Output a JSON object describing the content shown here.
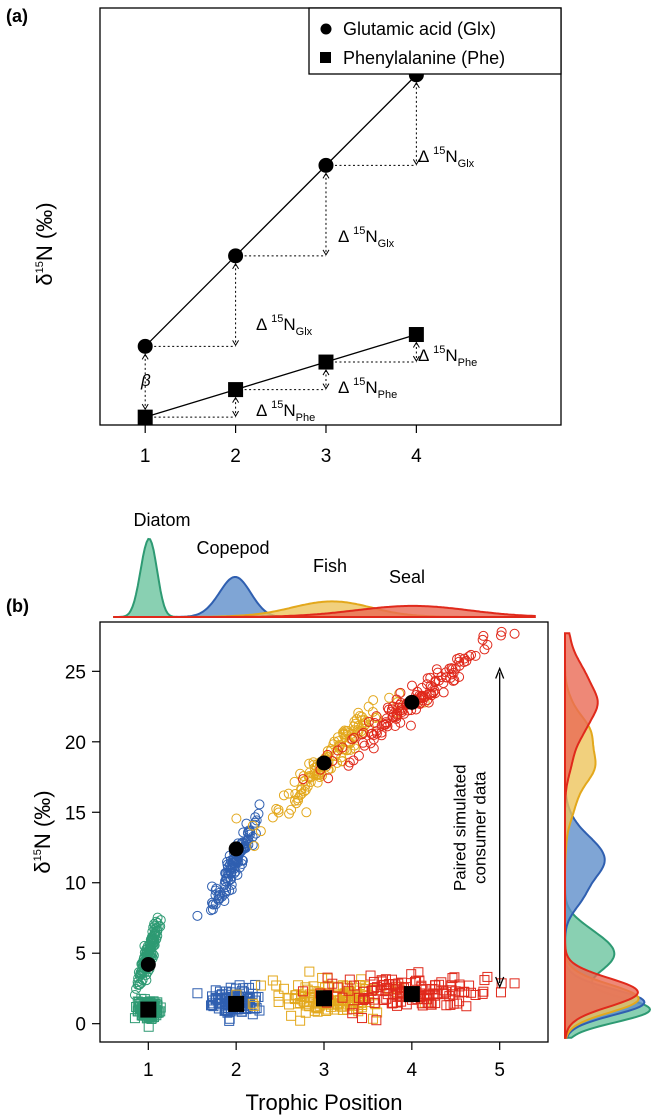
{
  "chart_data": [
    {
      "panel": "(a)",
      "type": "line",
      "ylabel": {
        "symbol": "δ",
        "sup": "15",
        "main": "N (‰)"
      },
      "x_ticks": [
        1,
        2,
        3,
        4
      ],
      "xlim": [
        0.5,
        5.6
      ],
      "ylim": [
        0,
        10.6
      ],
      "legend": {
        "position": "top-right",
        "entries": [
          {
            "marker": "circle",
            "label": "Glutamic acid (Glx)"
          },
          {
            "marker": "square",
            "label": "Phenylalanine (Phe)"
          }
        ]
      },
      "series": [
        {
          "name": "Glutamic acid (Glx)",
          "marker": "circle",
          "x": [
            1,
            2,
            3,
            4
          ],
          "y": [
            2.0,
            4.3,
            6.6,
            8.9
          ]
        },
        {
          "name": "Phenylalanine (Phe)",
          "marker": "square",
          "x": [
            1,
            2,
            3,
            4
          ],
          "y": [
            0.2,
            0.9,
            1.6,
            2.3
          ]
        }
      ],
      "annotations": {
        "beta": "β",
        "glx": [
          {
            "delta": "Δ",
            "sup": "15",
            "main": "N",
            "sub": "Glx"
          },
          {
            "delta": "Δ",
            "sup": "15",
            "main": "N",
            "sub": "Glx"
          },
          {
            "delta": "Δ",
            "sup": "15",
            "main": "N",
            "sub": "Glx"
          }
        ],
        "phe": [
          {
            "delta": "Δ",
            "sup": "15",
            "main": "N",
            "sub": "Phe"
          },
          {
            "delta": "Δ",
            "sup": "15",
            "main": "N",
            "sub": "Phe"
          },
          {
            "delta": "Δ",
            "sup": "15",
            "main": "N",
            "sub": "Phe"
          }
        ]
      }
    },
    {
      "panel": "(b)",
      "type": "scatter",
      "xlabel": "Trophic Position",
      "ylabel": {
        "symbol": "δ",
        "sup": "15",
        "main": "N (‰)"
      },
      "x_ticks": [
        1,
        2,
        3,
        4,
        5
      ],
      "y_ticks": [
        0,
        5,
        10,
        15,
        20,
        25
      ],
      "xlim": [
        0.45,
        5.55
      ],
      "ylim": [
        -1.3,
        28.5
      ],
      "vertical_annotation": [
        "Paired simulated",
        "consumer data"
      ],
      "arrow": {
        "x": 5,
        "y_from": 2.6,
        "y_to": 25.2
      },
      "groups": [
        {
          "name": "Diatom",
          "color": "#2e9a73",
          "fill": "#6cc49f",
          "tp_mean": 1.0,
          "tp_sd": 0.07,
          "glx_range": [
            2.5,
            7.3
          ],
          "phe_mean": 1.0,
          "phe_sd": 0.35,
          "n": 120
        },
        {
          "name": "Copepod",
          "color": "#2f5fb0",
          "fill": "#5f8fca",
          "tp_mean": 2.0,
          "tp_sd": 0.13,
          "glx_range": [
            8.5,
            14.6
          ],
          "phe_mean": 1.5,
          "phe_sd": 0.45,
          "n": 120
        },
        {
          "name": "Fish",
          "color": "#e3a81c",
          "fill": "#edc45c",
          "tp_mean": 3.0,
          "tp_sd": 0.35,
          "glx_range": [
            14.0,
            23.0
          ],
          "phe_mean": 1.8,
          "phe_sd": 0.6,
          "n": 140
        },
        {
          "name": "Seal",
          "color": "#e0291b",
          "fill": "#ea6a55",
          "tp_mean": 4.0,
          "tp_sd": 0.5,
          "glx_range": [
            18.0,
            27.6
          ],
          "phe_mean": 2.1,
          "phe_sd": 0.65,
          "n": 140
        }
      ],
      "means_glx": [
        {
          "x": 1,
          "y": 4.2
        },
        {
          "x": 2,
          "y": 12.4
        },
        {
          "x": 3,
          "y": 18.5
        },
        {
          "x": 4,
          "y": 22.8
        }
      ],
      "means_phe": [
        {
          "x": 1,
          "y": 1.0
        },
        {
          "x": 2,
          "y": 1.4
        },
        {
          "x": 3,
          "y": 1.8
        },
        {
          "x": 4,
          "y": 2.1
        }
      ]
    }
  ]
}
